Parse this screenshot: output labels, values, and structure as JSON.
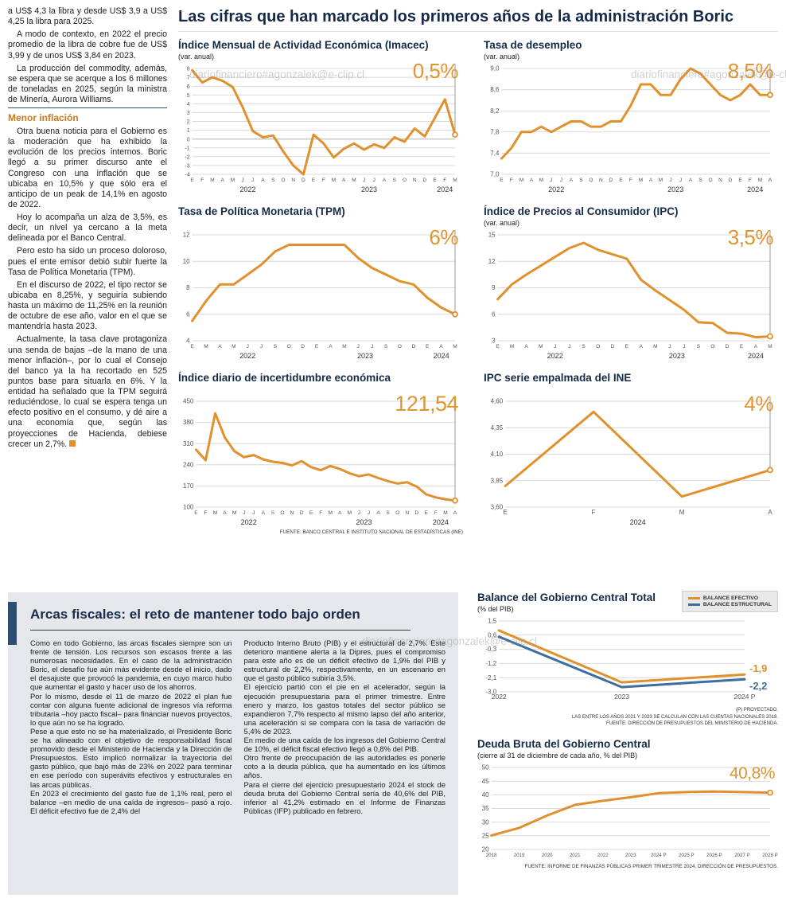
{
  "watermark": "diariofinanciero#agonzalek@e-clip.cl",
  "main_title": "Las cifras que han marcado los primeros años de la administración Boric",
  "article": {
    "subhead": "Menor inflación",
    "paragraphs": [
      "a US$ 4,3 la libra y desde US$ 3,9 a US$ 4,25 la libra para 2025.",
      "A modo de contexto, en 2022 el precio promedio de la libra de cobre fue de US$ 3,99 y de unos US$ 3,84 en 2023.",
      "La producción del commodity, además, se espera que se acerque a los 6 millones de toneladas en 2025, según la ministra de Minería, Aurora Williams.",
      "Otra buena noticia para el Gobierno es la moderación que ha exhibido la evolución de los precios internos. Boric llegó a su primer discurso ante el Congreso con una inflación que se ubicaba en 10,5% y que sólo era el anticipo de un peak de 14,1% en agosto de 2022.",
      "Hoy lo acompaña un alza de 3,5%, es decir, un nivel ya cercano a la meta delineada por el Banco Central.",
      "Pero esto ha sido un proceso doloroso, pues el ente emisor debió subir fuerte la Tasa de Política Monetaria (TPM).",
      "En el discurso de 2022, el tipo rector se ubicaba en 8,25%, y seguiría subiendo hasta un máximo de 11,25% en la reunión de octubre de ese año, valor en el que se mantendría hasta 2023.",
      "Actualmente, la tasa clave protagoniza una senda de bajas –de la mano de una menor inflación–, por lo cual el Consejo del banco ya la ha recortado en 525 puntos base para situarla en 6%. Y la entidad ha señalado que la TPM seguirá reduciéndose, lo cual se espera tenga un efecto positivo en el consumo, y dé aire a una economía que, según las proyecciones de Hacienda, debiese crecer un 2,7%."
    ]
  },
  "fiscal_box": {
    "title": "Arcas fiscales: el reto de mantener todo bajo orden",
    "col1": [
      "Como en todo Gobierno, las arcas fiscales siempre son un frente de tensión. Los recursos son escasos frente a las numerosas necesidades. En el caso de la administración Boric, el desafío fue aún más evidente desde el inicio, dado el desajuste que provocó la pandemia, en cuyo marco hubo que aumentar el gasto y hacer uso de los ahorros.",
      "Por lo mismo, desde el 11 de marzo de 2022 el plan fue contar con alguna fuente adicional de ingresos vía reforma tributaria –hoy pacto fiscal– para financiar nuevos proyectos, lo que aún no se ha logrado.",
      "Pese a que esto no se ha materializado, el Presidente Boric se ha alineado con el objetivo de responsabilidad fiscal promovido desde el Ministerio de Hacienda y la Dirección de Presupuestos. Esto implicó normalizar la trayectoria del gasto público, que bajó más de 23% en 2022 para terminar en ese período con superávits efectivos y estructurales en las arcas públicas.",
      "En 2023 el crecimiento del gasto fue de 1,1% real, pero el balance –en medio de una caída de ingresos– pasó a rojo. El déficit efectivo fue de 2,4% del"
    ],
    "col2": [
      "Producto Interno Bruto (PIB) y el estructural de 2,7%. Este deterioro mantiene alerta a la Dipres, pues el compromiso para este año es de un déficit efectivo de 1,9% del PIB y estructural de 2,2%, respectivamente, en un escenario en que el gasto público subiría 3,5%.",
      "El ejercicio partió con el pie en el acelerador, según la ejecución presupuestaria para el primer trimestre. Entre enero y marzo, los gastos totales del sector público se expandieron 7,7% respecto al mismo lapso del año anterior, una aceleración si se compara con la tasa de variación de 5,4% de 2023.",
      "En medio de una caída de los ingresos del Gobierno Central de 10%, el déficit fiscal efectivo llegó a 0,8% del PIB.",
      "Otro frente de preocupación de las autoridades es ponerle coto a la deuda pública, que ha aumentado en los últimos años.",
      "Para el cierre del ejercicio presupuestario 2024 el stock de deuda bruta del Gobierno Central sería de 40,6% del PIB, inferior al 41,2% estimado en el Informe de Finanzas Públicas (IFP) publicado en febrero."
    ]
  },
  "chart_data": [
    {
      "key": "imacec",
      "type": "line",
      "title": "Índice Mensual de Actividad Económica (Imacec)",
      "subtitle": "(var. anual)",
      "big_value": "0,5%",
      "color": "#E0912E",
      "y_ticks": [
        8,
        7,
        6,
        5,
        4,
        3,
        2,
        1,
        0,
        -1,
        -2,
        -3,
        -4
      ],
      "y_tick_labels": [
        "8",
        "7",
        "6",
        "5",
        "4",
        "3",
        "2",
        "1",
        "0",
        "-1",
        "-2",
        "-3",
        "-4"
      ],
      "y_label_size": 7,
      "x_labels": [
        "E",
        "F",
        "M",
        "A",
        "M",
        "J",
        "J",
        "A",
        "S",
        "O",
        "N",
        "D",
        "E",
        "F",
        "M",
        "A",
        "M",
        "J",
        "J",
        "A",
        "S",
        "O",
        "N",
        "D",
        "E",
        "F",
        "M"
      ],
      "years": [
        {
          "label": "2022",
          "from": 0,
          "to": 11
        },
        {
          "label": "2023",
          "from": 12,
          "to": 23
        },
        {
          "label": "2024",
          "from": 24,
          "to": 26
        }
      ],
      "values": [
        7.8,
        6.4,
        7.0,
        6.6,
        5.9,
        3.6,
        0.9,
        0.2,
        0.4,
        -1.4,
        -3.0,
        -4.0,
        0.5,
        -0.5,
        -2.1,
        -1.1,
        -0.5,
        -1.2,
        -0.6,
        -1.0,
        0.2,
        -0.3,
        1.2,
        0.3,
        2.4,
        4.5,
        0.5
      ],
      "end_line": true
    },
    {
      "key": "desempleo",
      "type": "line",
      "title": "Tasa de desempleo",
      "subtitle": "(var. anual)",
      "big_value": "8,5%",
      "color": "#E0912E",
      "y_ticks": [
        9.0,
        8.6,
        8.2,
        7.8,
        7.4,
        7.0
      ],
      "y_tick_labels": [
        "9,0",
        "8,6",
        "8,2",
        "7,8",
        "7,4",
        "7,0"
      ],
      "x_labels": [
        "E",
        "F",
        "M",
        "A",
        "M",
        "J",
        "J",
        "A",
        "S",
        "O",
        "N",
        "D",
        "E",
        "F",
        "M",
        "A",
        "M",
        "J",
        "J",
        "A",
        "S",
        "O",
        "N",
        "D",
        "E",
        "F",
        "M",
        "A"
      ],
      "years": [
        {
          "label": "2022",
          "from": 0,
          "to": 11
        },
        {
          "label": "2023",
          "from": 12,
          "to": 23
        },
        {
          "label": "2024",
          "from": 24,
          "to": 27
        }
      ],
      "values": [
        7.3,
        7.5,
        7.8,
        7.8,
        7.9,
        7.8,
        7.9,
        8.0,
        8.0,
        7.9,
        7.9,
        8.0,
        8.0,
        8.3,
        8.7,
        8.7,
        8.5,
        8.5,
        8.8,
        9.0,
        8.9,
        8.7,
        8.5,
        8.4,
        8.5,
        8.7,
        8.5,
        8.5
      ],
      "end_line": true
    },
    {
      "key": "tpm",
      "type": "line",
      "title": "Tasa de Política Monetaria (TPM)",
      "subtitle": "",
      "big_value": "6%",
      "color": "#E0912E",
      "y_ticks": [
        12,
        10,
        8,
        6,
        4
      ],
      "y_tick_labels": [
        "12",
        "10",
        "8",
        "6",
        "4"
      ],
      "x_labels": [
        "E",
        "M",
        "A",
        "M",
        "J",
        "J",
        "S",
        "O",
        "D",
        "E",
        "A",
        "M",
        "J",
        "J",
        "S",
        "O",
        "D",
        "E",
        "A",
        "M"
      ],
      "years": [
        {
          "label": "2022",
          "from": 0,
          "to": 8
        },
        {
          "label": "2023",
          "from": 9,
          "to": 16
        },
        {
          "label": "2024",
          "from": 17,
          "to": 19
        }
      ],
      "values": [
        5.5,
        7.0,
        8.25,
        8.25,
        9.0,
        9.75,
        10.75,
        11.25,
        11.25,
        11.25,
        11.25,
        11.25,
        10.25,
        9.5,
        9.0,
        8.5,
        8.25,
        7.25,
        6.5,
        6.0
      ],
      "end_line": true
    },
    {
      "key": "ipc",
      "type": "line",
      "title": "Índice de Precios al Consumidor (IPC)",
      "subtitle": "(var. anual)",
      "big_value": "3,5%",
      "color": "#E0912E",
      "y_ticks": [
        15,
        12,
        9,
        6,
        3
      ],
      "y_tick_labels": [
        "15",
        "12",
        "9",
        "6",
        "3"
      ],
      "x_labels": [
        "E",
        "M",
        "A",
        "M",
        "J",
        "J",
        "S",
        "O",
        "D",
        "E",
        "A",
        "M",
        "J",
        "J",
        "S",
        "O",
        "D",
        "E",
        "A",
        "M"
      ],
      "years": [
        {
          "label": "2022",
          "from": 0,
          "to": 8
        },
        {
          "label": "2023",
          "from": 9,
          "to": 16
        },
        {
          "label": "2024",
          "from": 17,
          "to": 19
        }
      ],
      "values": [
        7.7,
        9.4,
        10.5,
        11.5,
        12.5,
        13.5,
        14.1,
        13.3,
        12.8,
        12.3,
        9.9,
        8.7,
        7.6,
        6.5,
        5.1,
        5.0,
        3.9,
        3.8,
        3.4,
        3.5
      ],
      "end_line": true
    },
    {
      "key": "incertidumbre",
      "type": "line",
      "title": "Índice diario de incertidumbre económica",
      "subtitle": "",
      "big_value": "121,54",
      "color": "#E0912E",
      "y_ticks": [
        450,
        380,
        310,
        240,
        170,
        100
      ],
      "y_tick_labels": [
        "450",
        "380",
        "310",
        "240",
        "170",
        "100"
      ],
      "x_labels": [
        "E",
        "F",
        "M",
        "A",
        "M",
        "J",
        "J",
        "A",
        "S",
        "O",
        "N",
        "D",
        "E",
        "F",
        "M",
        "A",
        "M",
        "J",
        "J",
        "A",
        "S",
        "O",
        "N",
        "D",
        "E",
        "F",
        "M",
        "A"
      ],
      "years": [
        {
          "label": "2022",
          "from": 0,
          "to": 11
        },
        {
          "label": "2023",
          "from": 12,
          "to": 23
        },
        {
          "label": "2024",
          "from": 24,
          "to": 27
        }
      ],
      "values": [
        290,
        255,
        410,
        330,
        285,
        265,
        272,
        258,
        250,
        246,
        238,
        252,
        232,
        222,
        236,
        226,
        212,
        202,
        208,
        196,
        186,
        178,
        182,
        168,
        142,
        132,
        126,
        121.54
      ],
      "end_line": true,
      "source": "FUENTE: BANCO CENTRAL E INSTITUTO NACIONAL DE ESTADÍSTICAS (INE)"
    },
    {
      "key": "ipc_empalmada",
      "type": "line",
      "title": "IPC serie empalmada del INE",
      "subtitle": "",
      "big_value": "4%",
      "color": "#E0912E",
      "y_ticks": [
        4.6,
        4.35,
        4.1,
        3.85,
        3.6
      ],
      "y_tick_labels": [
        "4,60",
        "4,35",
        "4,10",
        "3,85",
        "3,60"
      ],
      "x_labels": [
        "E",
        "F",
        "M",
        "A"
      ],
      "x_label_size": 8,
      "years": [
        {
          "label": "2024",
          "from": 0,
          "to": 3
        }
      ],
      "values": [
        3.8,
        4.5,
        3.7,
        3.95
      ],
      "end_line": true
    },
    {
      "key": "balance",
      "type": "line",
      "title": "Balance del Gobierno Central Total",
      "subtitle": "(% del PIB)",
      "y_ticks": [
        1.5,
        0.6,
        -0.3,
        -1.2,
        -2.1,
        -3.0
      ],
      "y_tick_labels": [
        "1,5",
        "0,6",
        "-0,3",
        "-1,2",
        "-2,1",
        "-3,0"
      ],
      "x_labels": [
        "2022",
        "2023",
        "2024 P"
      ],
      "x_label_size": 8.5,
      "mr": 42,
      "end_marker": false,
      "series": [
        {
          "name": "BALANCE EFECTIVO",
          "color": "#E0912E",
          "values": [
            0.9,
            -2.4,
            -1.9
          ],
          "annotation": "-1,9"
        },
        {
          "name": "BALANCE ESTRUCTURAL",
          "color": "#3C6E9F",
          "values": [
            0.5,
            -2.7,
            -2.2
          ],
          "annotation": "-2,2"
        }
      ],
      "notes": [
        "(P) PROYECTADO.",
        "LAS ENTRE LOS AÑOS 2021 Y 2023 SE CALCULAN CON LAS CUENTAS NACIONALES 2018.",
        "FUENTE: DIRECCIÓN DE PRESUPUESTOS DEL MINISTERIO DE HACIENDA."
      ]
    },
    {
      "key": "deuda",
      "type": "line",
      "title": "Deuda Bruta del Gobierno Central",
      "subtitle": "(cierre al 31 de diciembre de cada año, % del PIB)",
      "big_value": "40,8%",
      "color": "#E0912E",
      "y_ticks": [
        50,
        45,
        40,
        35,
        30,
        25,
        20
      ],
      "y_tick_labels": [
        "50",
        "45",
        "40",
        "35",
        "30",
        "25",
        "20"
      ],
      "x_labels": [
        "2018",
        "2019",
        "2020",
        "2021",
        "2022",
        "2023",
        "2024 P",
        "2025 P",
        "2026 P",
        "2027 P",
        "2028 P"
      ],
      "x_label_size": 6.2,
      "values": [
        25.1,
        27.9,
        32.4,
        36.3,
        37.8,
        39.1,
        40.6,
        41.0,
        41.2,
        41.0,
        40.8
      ],
      "source": "FUENTE: INFORME DE FINANZAS PÚBLICAS PRIMER TRIMESTRE 2024, DIRECCIÓN DE PRESUPUESTOS."
    }
  ]
}
